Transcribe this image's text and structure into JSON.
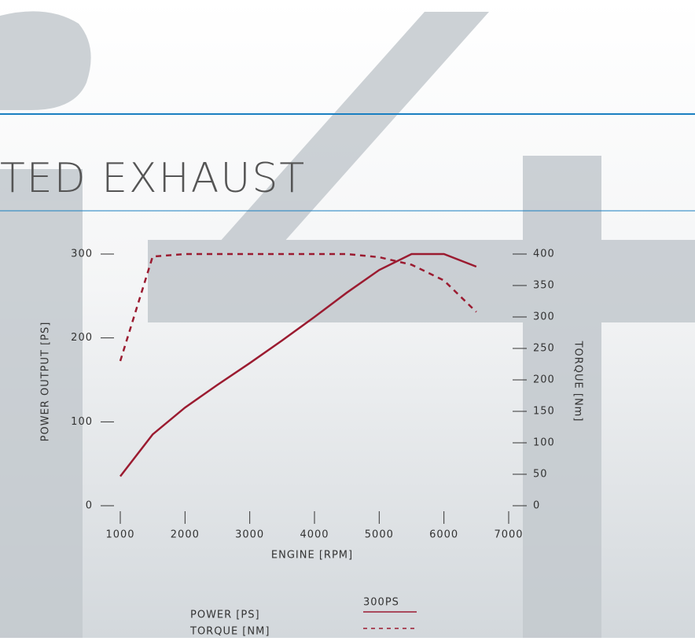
{
  "page": {
    "heading": "TED EXHAUST"
  },
  "chart_data": {
    "type": "line",
    "x_label": "ENGINE [RPM]",
    "y_label": "POWER OUTPUT [PS]",
    "y2_label": "TORQUE [Nm]",
    "x": [
      1000,
      1500,
      2000,
      2500,
      3000,
      3500,
      4000,
      4500,
      5000,
      5500,
      6000,
      6500
    ],
    "xlim": [
      1000,
      7000
    ],
    "xticks": [
      1000,
      2000,
      3000,
      4000,
      5000,
      6000,
      7000
    ],
    "ylim": [
      0,
      300
    ],
    "yticks": [
      0,
      100,
      200,
      300
    ],
    "y2lim": [
      0,
      400
    ],
    "y2ticks": [
      0,
      50,
      100,
      150,
      200,
      250,
      300,
      350,
      400
    ],
    "legend_header": "300PS",
    "series": [
      {
        "name": "POWER [PS]",
        "color": "#9b1b30",
        "line_style": "solid",
        "values": [
          35,
          85,
          117,
          144,
          170,
          197,
          225,
          254,
          281,
          300,
          300,
          285
        ]
      },
      {
        "name": "TORQUE [NM]",
        "color": "#9b1b30",
        "line_style": "dashed",
        "axis": "y2",
        "values": [
          230,
          396,
          400,
          400,
          400,
          400,
          400,
          400,
          395,
          383,
          358,
          308
        ]
      }
    ]
  }
}
